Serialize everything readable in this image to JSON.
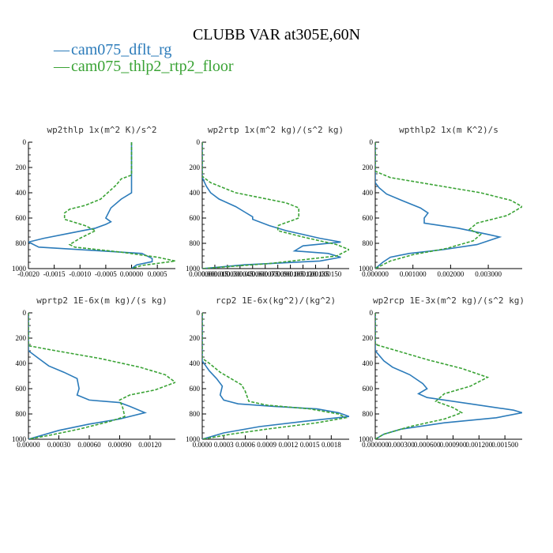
{
  "figure": {
    "title": "CLUBB VAR at305E,60N",
    "legend": [
      {
        "name": "cam075_dflt_rg",
        "color": "#2b7bba",
        "dash": "solid"
      },
      {
        "name": "cam075_thlp2_rtp2_floor",
        "color": "#3aa335",
        "dash": "dashed"
      }
    ]
  },
  "chart_data": [
    {
      "type": "line",
      "title": "wp2thlp  1x(m^2 K)/s^2",
      "xlim": [
        -0.002,
        0.00085
      ],
      "ylim": [
        1000,
        0
      ],
      "xticks": [
        -0.002,
        -0.0015,
        -0.001,
        -0.0005,
        0.0,
        0.0005
      ],
      "xtick_labels": [
        "-0.0020",
        "-0.0015",
        "-0.0010",
        "-0.0005",
        "0.00000",
        "0.0005"
      ],
      "yticks": [
        0,
        200,
        400,
        600,
        800,
        1000
      ],
      "series": [
        {
          "name": "cam075_dflt_rg",
          "points": [
            [
              0.0,
              0
            ],
            [
              0.0,
              200
            ],
            [
              0.0,
              400
            ],
            [
              -0.0002,
              450
            ],
            [
              -0.0004,
              520
            ],
            [
              -0.0005,
              600
            ],
            [
              -0.0004,
              630
            ],
            [
              -0.0005,
              650
            ],
            [
              -0.0007,
              680
            ],
            [
              -0.0012,
              720
            ],
            [
              -0.0017,
              760
            ],
            [
              -0.002,
              790
            ],
            [
              -0.0018,
              830
            ],
            [
              -0.0006,
              860
            ],
            [
              0.0002,
              880
            ],
            [
              0.0004,
              920
            ],
            [
              0.0004,
              945
            ],
            [
              0.0001,
              970
            ],
            [
              0.0,
              1000
            ]
          ]
        },
        {
          "name": "cam075_thlp2_rtp2_floor",
          "points": [
            [
              0.0,
              0
            ],
            [
              0.0,
              260
            ],
            [
              -0.0002,
              290
            ],
            [
              -0.0003,
              340
            ],
            [
              -0.0006,
              450
            ],
            [
              -0.0009,
              500
            ],
            [
              -0.0012,
              530
            ],
            [
              -0.0013,
              560
            ],
            [
              -0.0013,
              610
            ],
            [
              -0.0009,
              660
            ],
            [
              -0.0007,
              700
            ],
            [
              -0.001,
              760
            ],
            [
              -0.0012,
              810
            ],
            [
              -0.0011,
              830
            ],
            [
              -0.0002,
              870
            ],
            [
              0.0005,
              910
            ],
            [
              0.00085,
              940
            ],
            [
              0.0002,
              975
            ],
            [
              0.0,
              1000
            ]
          ]
        }
      ]
    },
    {
      "type": "line",
      "title": "wp2rtp  1x(m^2 kg)/(s^2 kg)",
      "xlim": [
        0.0,
        0.000175
      ],
      "ylim": [
        1000,
        0
      ],
      "xticks": [
        0.0,
        1.5e-05,
        3e-05,
        4.5e-05,
        6e-05,
        7.5e-05,
        9e-05,
        0.000105,
        0.00012,
        0.000135,
        0.00015
      ],
      "xtick_labels": [
        "0.000000",
        "0.000015",
        "0.000030",
        "0.000045",
        "0.000060",
        "0.000075",
        "0.000090",
        "0.000105",
        "0.000120",
        "0.000135",
        "0.000150"
      ],
      "yticks": [
        0,
        200,
        400,
        600,
        800,
        1000
      ],
      "series": [
        {
          "name": "cam075_dflt_rg",
          "points": [
            [
              0.0,
              0
            ],
            [
              0.0,
              280
            ],
            [
              5e-06,
              350
            ],
            [
              1e-05,
              400
            ],
            [
              2e-05,
              450
            ],
            [
              4e-05,
              510
            ],
            [
              5e-05,
              550
            ],
            [
              6e-05,
              590
            ],
            [
              6e-05,
              610
            ],
            [
              8e-05,
              660
            ],
            [
              0.0001,
              700
            ],
            [
              0.00014,
              760
            ],
            [
              0.000165,
              790
            ],
            [
              0.00012,
              820
            ],
            [
              0.00011,
              860
            ],
            [
              0.00015,
              880
            ],
            [
              0.000165,
              910
            ],
            [
              0.00014,
              940
            ],
            [
              5e-05,
              970
            ],
            [
              0.0,
              1000
            ]
          ]
        },
        {
          "name": "cam075_thlp2_rtp2_floor",
          "points": [
            [
              0.0,
              0
            ],
            [
              0.0,
              270
            ],
            [
              1e-05,
              320
            ],
            [
              4e-05,
              400
            ],
            [
              7e-05,
              440
            ],
            [
              0.0001,
              480
            ],
            [
              0.000115,
              520
            ],
            [
              0.000115,
              600
            ],
            [
              9e-05,
              660
            ],
            [
              9e-05,
              700
            ],
            [
              0.00012,
              750
            ],
            [
              0.00016,
              810
            ],
            [
              0.000175,
              850
            ],
            [
              0.00016,
              900
            ],
            [
              8e-05,
              960
            ],
            [
              0.0,
              1000
            ]
          ]
        }
      ]
    },
    {
      "type": "line",
      "title": "wpthlp2  1x(m K^2)/s",
      "xlim": [
        0.0,
        0.0039
      ],
      "ylim": [
        1000,
        0
      ],
      "xticks": [
        0.0,
        0.001,
        0.002,
        0.003
      ],
      "xtick_labels": [
        "0.000000",
        "0.001000",
        "0.002000",
        "0.003000"
      ],
      "yticks": [
        0,
        200,
        400,
        600,
        800,
        1000
      ],
      "series": [
        {
          "name": "cam075_dflt_rg",
          "points": [
            [
              0.0,
              0
            ],
            [
              0.0,
              320
            ],
            [
              0.0001,
              360
            ],
            [
              0.0003,
              410
            ],
            [
              0.0007,
              460
            ],
            [
              0.0012,
              520
            ],
            [
              0.0014,
              560
            ],
            [
              0.0013,
              600
            ],
            [
              0.0013,
              640
            ],
            [
              0.0022,
              680
            ],
            [
              0.003,
              730
            ],
            [
              0.0033,
              750
            ],
            [
              0.0027,
              810
            ],
            [
              0.0018,
              850
            ],
            [
              0.0009,
              880
            ],
            [
              0.0004,
              910
            ],
            [
              0.0002,
              950
            ],
            [
              0.0,
              1000
            ]
          ]
        },
        {
          "name": "cam075_thlp2_rtp2_floor",
          "points": [
            [
              0.0,
              0
            ],
            [
              0.0,
              230
            ],
            [
              0.0004,
              280
            ],
            [
              0.0016,
              340
            ],
            [
              0.0028,
              400
            ],
            [
              0.0036,
              460
            ],
            [
              0.0039,
              510
            ],
            [
              0.0035,
              580
            ],
            [
              0.0027,
              640
            ],
            [
              0.0025,
              690
            ],
            [
              0.0028,
              730
            ],
            [
              0.0026,
              780
            ],
            [
              0.0019,
              840
            ],
            [
              0.001,
              890
            ],
            [
              0.0004,
              940
            ],
            [
              0.0,
              1000
            ]
          ]
        }
      ]
    },
    {
      "type": "line",
      "title": "wprtp2  1E-6x(m kg)/(s kg)",
      "xlim": [
        0.0,
        0.00145
      ],
      "ylim": [
        1000,
        0
      ],
      "xticks": [
        0.0,
        0.0003,
        0.0006,
        0.0009,
        0.0012
      ],
      "xtick_labels": [
        "0.00000",
        "0.00030",
        "0.00060",
        "0.00090",
        "0.00120"
      ],
      "yticks": [
        0,
        200,
        400,
        600,
        800,
        1000
      ],
      "series": [
        {
          "name": "cam075_dflt_rg",
          "points": [
            [
              0.0,
              0
            ],
            [
              0.0,
              300
            ],
            [
              0.0001,
              360
            ],
            [
              0.0002,
              420
            ],
            [
              0.00035,
              470
            ],
            [
              0.00048,
              520
            ],
            [
              0.0005,
              600
            ],
            [
              0.00048,
              650
            ],
            [
              0.0006,
              690
            ],
            [
              0.0009,
              710
            ],
            [
              0.001,
              740
            ],
            [
              0.00115,
              790
            ],
            [
              0.0009,
              840
            ],
            [
              0.0006,
              880
            ],
            [
              0.0003,
              930
            ],
            [
              0.0,
              1000
            ]
          ]
        },
        {
          "name": "cam075_thlp2_rtp2_floor",
          "points": [
            [
              0.0,
              0
            ],
            [
              0.0,
              260
            ],
            [
              0.0002,
              290
            ],
            [
              0.0007,
              360
            ],
            [
              0.0011,
              430
            ],
            [
              0.00135,
              490
            ],
            [
              0.00145,
              550
            ],
            [
              0.00125,
              610
            ],
            [
              0.001,
              650
            ],
            [
              0.0009,
              690
            ],
            [
              0.00093,
              750
            ],
            [
              0.00095,
              820
            ],
            [
              0.0008,
              860
            ],
            [
              0.0005,
              920
            ],
            [
              0.0002,
              970
            ],
            [
              0.0,
              1000
            ]
          ]
        }
      ]
    },
    {
      "type": "line",
      "title": "rcp2  1E-6x(kg^2)/(kg^2)",
      "xlim": [
        0.0,
        0.00205
      ],
      "ylim": [
        1000,
        0
      ],
      "xticks": [
        0.0,
        0.0003,
        0.0006,
        0.0009,
        0.0012,
        0.0015,
        0.0018
      ],
      "xtick_labels": [
        "0.0000",
        "0.0003",
        "0.0006",
        "0.0009",
        "0.0012",
        "0.0015",
        "0.0018"
      ],
      "yticks": [
        0,
        200,
        400,
        600,
        800,
        1000
      ],
      "series": [
        {
          "name": "cam075_dflt_rg",
          "points": [
            [
              0.0,
              0
            ],
            [
              0.0,
              380
            ],
            [
              5e-05,
              420
            ],
            [
              0.0001,
              460
            ],
            [
              0.0002,
              520
            ],
            [
              0.00028,
              580
            ],
            [
              0.00025,
              650
            ],
            [
              0.0003,
              690
            ],
            [
              0.0005,
              720
            ],
            [
              0.001,
              740
            ],
            [
              0.0016,
              760
            ],
            [
              0.0019,
              790
            ],
            [
              0.00205,
              820
            ],
            [
              0.0014,
              860
            ],
            [
              0.0008,
              900
            ],
            [
              0.0003,
              950
            ],
            [
              0.0,
              1000
            ]
          ]
        },
        {
          "name": "cam075_thlp2_rtp2_floor",
          "points": [
            [
              0.0,
              0
            ],
            [
              0.0,
              360
            ],
            [
              0.0001,
              400
            ],
            [
              0.00025,
              470
            ],
            [
              0.0004,
              520
            ],
            [
              0.00055,
              570
            ],
            [
              0.0006,
              620
            ],
            [
              0.00065,
              700
            ],
            [
              0.0009,
              730
            ],
            [
              0.0015,
              760
            ],
            [
              0.0019,
              800
            ],
            [
              0.002,
              830
            ],
            [
              0.0016,
              870
            ],
            [
              0.0009,
              920
            ],
            [
              0.0004,
              960
            ],
            [
              0.0,
              1000
            ]
          ]
        }
      ]
    },
    {
      "type": "line",
      "title": "wp2rcp  1E-3x(m^2 kg)/(s^2 kg)",
      "xlim": [
        0.0,
        0.0017
      ],
      "ylim": [
        1000,
        0
      ],
      "xticks": [
        0.0,
        0.0003,
        0.0006,
        0.0009,
        0.0012,
        0.0015
      ],
      "xtick_labels": [
        "0.000000",
        "0.000300",
        "0.000600",
        "0.000900",
        "0.001200",
        "0.001500"
      ],
      "yticks": [
        0,
        200,
        400,
        600,
        800,
        1000
      ],
      "series": [
        {
          "name": "cam075_dflt_rg",
          "points": [
            [
              0.0,
              0
            ],
            [
              0.0,
              300
            ],
            [
              0.0001,
              380
            ],
            [
              0.0002,
              430
            ],
            [
              0.0004,
              490
            ],
            [
              0.00055,
              560
            ],
            [
              0.0006,
              600
            ],
            [
              0.0005,
              640
            ],
            [
              0.0006,
              670
            ],
            [
              0.0011,
              720
            ],
            [
              0.0016,
              770
            ],
            [
              0.0017,
              790
            ],
            [
              0.0014,
              830
            ],
            [
              0.0008,
              870
            ],
            [
              0.0003,
              920
            ],
            [
              0.0001,
              960
            ],
            [
              0.0,
              1000
            ]
          ]
        },
        {
          "name": "cam075_thlp2_rtp2_floor",
          "points": [
            [
              0.0,
              0
            ],
            [
              0.0,
              250
            ],
            [
              0.0002,
              290
            ],
            [
              0.0006,
              370
            ],
            [
              0.001,
              440
            ],
            [
              0.0013,
              510
            ],
            [
              0.0011,
              580
            ],
            [
              0.0008,
              640
            ],
            [
              0.0007,
              700
            ],
            [
              0.0009,
              750
            ],
            [
              0.001,
              790
            ],
            [
              0.0008,
              840
            ],
            [
              0.0004,
              900
            ],
            [
              0.0001,
              960
            ],
            [
              0.0,
              1000
            ]
          ]
        }
      ]
    }
  ]
}
